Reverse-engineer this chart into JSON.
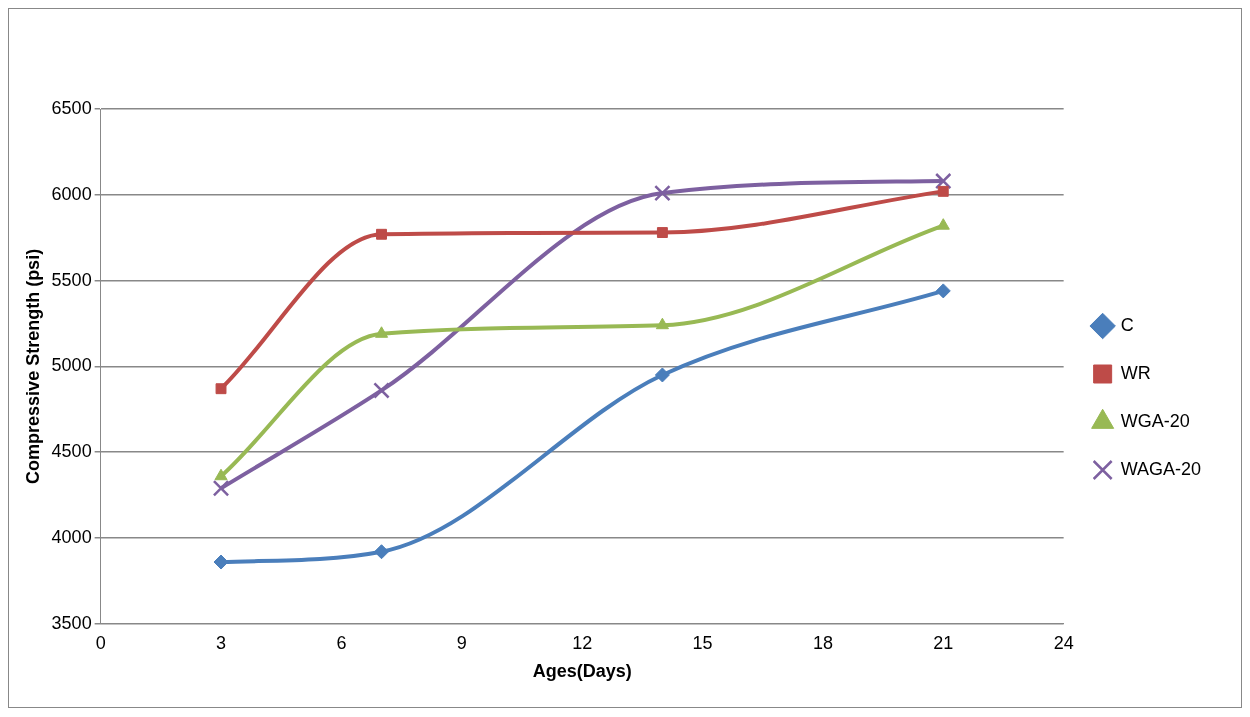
{
  "chart_data": {
    "type": "line",
    "xlabel": "Ages(Days)",
    "ylabel": "Compressive Strength (psi)",
    "x": [
      3,
      7,
      14,
      21
    ],
    "series": [
      {
        "name": "C",
        "color": "#4a7ebb",
        "values": [
          3860,
          3920,
          4950,
          5440
        ],
        "marker": "diamond"
      },
      {
        "name": "WR",
        "color": "#be4b48",
        "values": [
          4870,
          5770,
          5780,
          6020
        ],
        "marker": "square"
      },
      {
        "name": "WGA-20",
        "color": "#98b954",
        "values": [
          4360,
          5190,
          5240,
          5820
        ],
        "marker": "triangle"
      },
      {
        "name": "WAGA-20",
        "color": "#7d60a0",
        "values": [
          4290,
          4860,
          6010,
          6080
        ],
        "marker": "cross"
      }
    ],
    "xlim": [
      0,
      24
    ],
    "xticks": [
      0,
      3,
      6,
      9,
      12,
      15,
      18,
      21,
      24
    ],
    "ylim": [
      3500,
      6500
    ],
    "yticks": [
      3500,
      4000,
      4500,
      5000,
      5500,
      6000,
      6500
    ],
    "grid": "y",
    "legend": "right",
    "line_style": "solid"
  }
}
